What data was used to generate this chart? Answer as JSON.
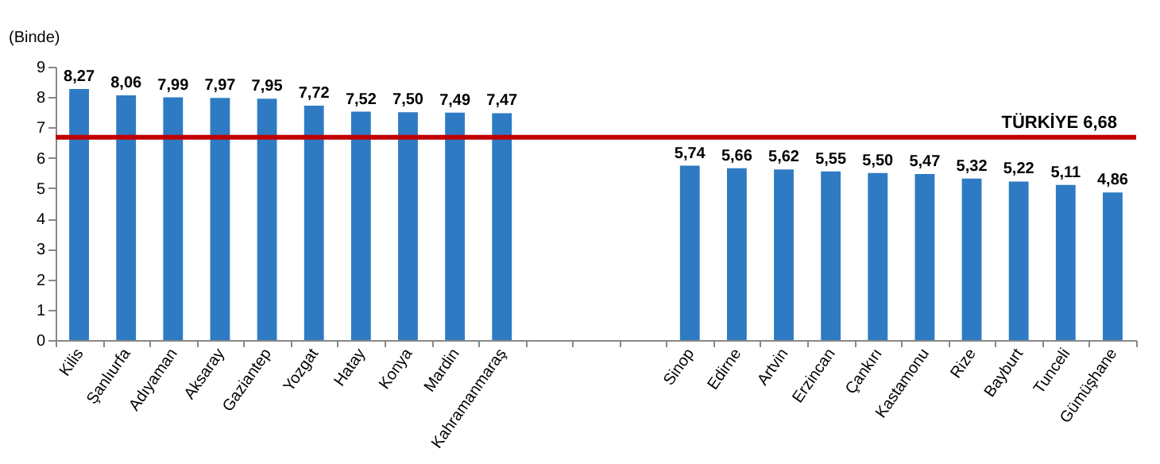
{
  "chart_data": {
    "type": "bar",
    "ylabel": "(Binde)",
    "categories": [
      "Kilis",
      "Şanlıurfa",
      "Adıyaman",
      "Aksaray",
      "Gaziantep",
      "Yozgat",
      "Hatay",
      "Konya",
      "Mardin",
      "Kahramanmaraş",
      null,
      null,
      null,
      "Sinop",
      "Edirne",
      "Artvin",
      "Erzincan",
      "Çankırı",
      "Kastamonu",
      "Rize",
      "Bayburt",
      "Tunceli",
      "Gümüşhane"
    ],
    "values": [
      8.27,
      8.06,
      7.99,
      7.97,
      7.95,
      7.72,
      7.52,
      7.5,
      7.49,
      7.47,
      null,
      null,
      null,
      5.74,
      5.66,
      5.62,
      5.55,
      5.5,
      5.47,
      5.32,
      5.22,
      5.11,
      4.86
    ],
    "value_labels": [
      "8,27",
      "8,06",
      "7,99",
      "7,97",
      "7,95",
      "7,72",
      "7,52",
      "7,50",
      "7,49",
      "7,47",
      null,
      null,
      null,
      "5,74",
      "5,66",
      "5,62",
      "5,55",
      "5,50",
      "5,47",
      "5,32",
      "5,22",
      "5,11",
      "4,86"
    ],
    "color": "#2e7bc4",
    "ylim": [
      0,
      9
    ],
    "yticks": [
      0,
      1,
      2,
      3,
      4,
      5,
      6,
      7,
      8,
      9
    ],
    "grid": false,
    "ref_lines": [
      {
        "axis": "y",
        "value": 6.68,
        "label": "TÜRKİYE 6,68",
        "color": "#c00000"
      }
    ]
  }
}
